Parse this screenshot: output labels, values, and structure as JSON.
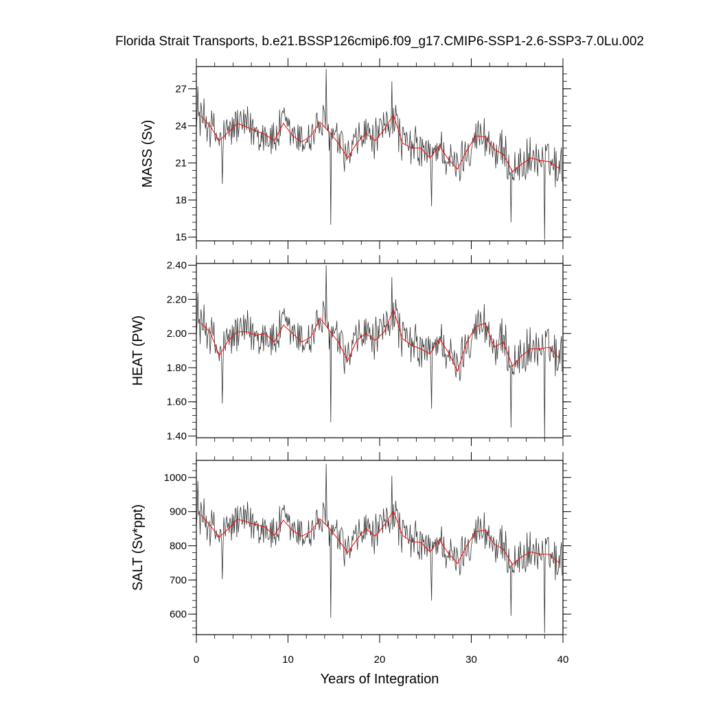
{
  "chart_data": {
    "type": "line",
    "title": "Florida Strait Transports, b.e21.BSSP126cmip6.f09_g17.CMIP6-SSP1-2.6-SSP3-7.0Lu.002",
    "xlabel": "Years of Integration",
    "xlim": [
      0,
      40
    ],
    "xticks": [
      "0",
      "10",
      "20",
      "30",
      "40"
    ],
    "colors": {
      "monthly": "#333333",
      "annual": "#ff0000",
      "frame": "#000000"
    },
    "panels": [
      {
        "id": "mass",
        "ylabel": "MASS (Sv)",
        "ylim": [
          14.7,
          28.8
        ],
        "yticks": [
          "15",
          "18",
          "21",
          "24",
          "27"
        ],
        "annual_x": [
          0.5,
          1.5,
          2.5,
          3.5,
          4.5,
          5.5,
          6.5,
          7.5,
          8.5,
          9.5,
          10.5,
          11.5,
          12.5,
          13.5,
          14.5,
          15.5,
          16.5,
          17.5,
          18.5,
          19.5,
          20.5,
          21.5,
          22.5,
          23.5,
          24.5,
          25.5,
          26.5,
          27.5,
          28.5,
          29.5,
          30.5,
          31.5,
          32.5,
          33.5,
          34.5,
          35.5,
          36.5,
          37.5,
          38.5,
          39.5
        ],
        "annual_y": [
          24.8,
          24.0,
          22.8,
          23.5,
          24.2,
          23.9,
          23.6,
          23.3,
          22.8,
          24.2,
          23.2,
          22.7,
          23.2,
          24.3,
          23.5,
          22.6,
          21.4,
          22.6,
          23.4,
          22.8,
          23.7,
          24.9,
          22.6,
          22.2,
          22.2,
          21.4,
          22.4,
          21.3,
          20.5,
          22.0,
          23.2,
          23.1,
          22.1,
          21.7,
          20.3,
          20.9,
          21.4,
          21.2,
          21.1,
          20.6
        ],
        "noise_amp": 2.0,
        "spikes": [
          [
            0.2,
            27.2
          ],
          [
            14.2,
            28.6
          ],
          [
            14.7,
            16.0
          ],
          [
            21.3,
            27.6
          ],
          [
            34.3,
            16.2
          ],
          [
            38.0,
            14.8
          ],
          [
            2.8,
            19.3
          ],
          [
            25.7,
            17.5
          ]
        ]
      },
      {
        "id": "heat",
        "ylabel": "HEAT (PW)",
        "ylim": [
          1.39,
          2.41
        ],
        "yticks": [
          "1.40",
          "1.60",
          "1.80",
          "2.00",
          "2.20",
          "2.40"
        ],
        "annual_x": [
          0.5,
          1.5,
          2.5,
          3.5,
          4.5,
          5.5,
          6.5,
          7.5,
          8.5,
          9.5,
          10.5,
          11.5,
          12.5,
          13.5,
          14.5,
          15.5,
          16.5,
          17.5,
          18.5,
          19.5,
          20.5,
          21.5,
          22.5,
          23.5,
          24.5,
          25.5,
          26.5,
          27.5,
          28.5,
          29.5,
          30.5,
          31.5,
          32.5,
          33.5,
          34.5,
          35.5,
          36.5,
          37.5,
          38.5,
          39.5
        ],
        "annual_y": [
          2.06,
          2.01,
          1.87,
          1.96,
          2.01,
          2.01,
          1.99,
          2.0,
          1.95,
          2.05,
          2.0,
          1.95,
          1.98,
          2.09,
          2.02,
          1.95,
          1.84,
          1.96,
          2.0,
          1.96,
          2.01,
          2.14,
          1.97,
          1.93,
          1.91,
          1.88,
          1.97,
          1.89,
          1.78,
          1.95,
          2.04,
          2.06,
          1.92,
          1.95,
          1.81,
          1.87,
          1.91,
          1.91,
          1.92,
          1.86
        ],
        "noise_amp": 0.15,
        "spikes": [
          [
            0.2,
            2.24
          ],
          [
            14.2,
            2.4
          ],
          [
            14.7,
            1.48
          ],
          [
            21.3,
            2.33
          ],
          [
            34.3,
            1.45
          ],
          [
            38.0,
            1.39
          ],
          [
            2.8,
            1.59
          ],
          [
            25.7,
            1.56
          ]
        ]
      },
      {
        "id": "salt",
        "ylabel": "SALT (Sv*ppt)",
        "ylim": [
          540,
          1050
        ],
        "yticks": [
          "600",
          "700",
          "800",
          "900",
          "1000"
        ],
        "annual_x": [
          0.5,
          1.5,
          2.5,
          3.5,
          4.5,
          5.5,
          6.5,
          7.5,
          8.5,
          9.5,
          10.5,
          11.5,
          12.5,
          13.5,
          14.5,
          15.5,
          16.5,
          17.5,
          18.5,
          19.5,
          20.5,
          21.5,
          22.5,
          23.5,
          24.5,
          25.5,
          26.5,
          27.5,
          28.5,
          29.5,
          30.5,
          31.5,
          32.5,
          33.5,
          34.5,
          35.5,
          36.5,
          37.5,
          38.5,
          39.5
        ],
        "annual_y": [
          890,
          860,
          825,
          850,
          878,
          870,
          862,
          855,
          830,
          875,
          845,
          828,
          842,
          878,
          852,
          818,
          780,
          818,
          850,
          828,
          860,
          902,
          830,
          812,
          810,
          782,
          818,
          778,
          748,
          800,
          842,
          845,
          805,
          790,
          745,
          768,
          782,
          776,
          775,
          752
        ],
        "noise_amp": 70,
        "spikes": [
          [
            0.2,
            990
          ],
          [
            14.2,
            1040
          ],
          [
            14.7,
            590
          ],
          [
            21.3,
            1005
          ],
          [
            34.3,
            595
          ],
          [
            38.0,
            545
          ],
          [
            2.8,
            702
          ],
          [
            25.7,
            640
          ]
        ]
      }
    ]
  }
}
